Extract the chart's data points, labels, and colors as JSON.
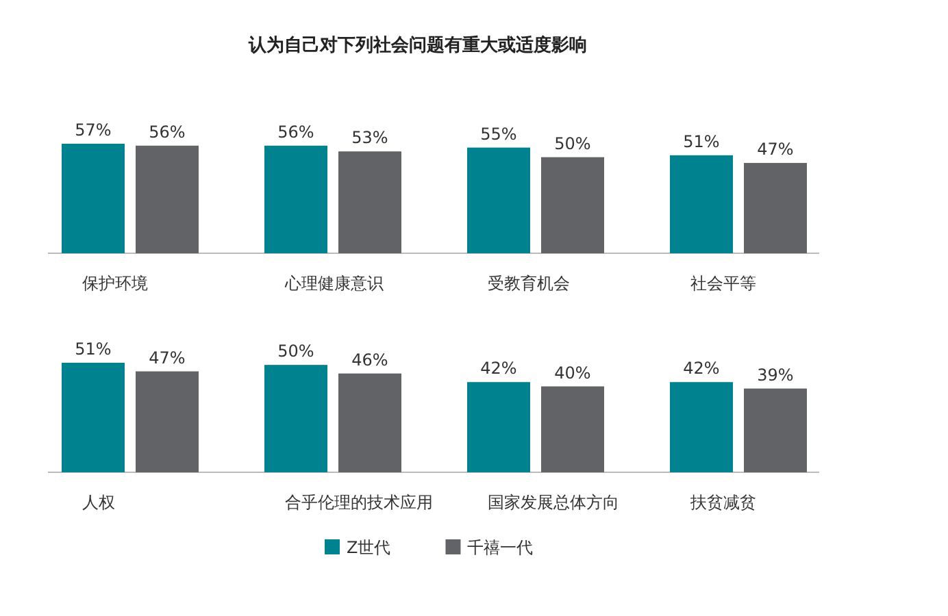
{
  "chart_data": [
    {
      "type": "bar",
      "title": "认为自己对下列社会问题有重大或适度影响",
      "categories": [
        "保护环境",
        "心理健康意识",
        "受教育机会",
        "社会平等"
      ],
      "series": [
        {
          "color": "#00838f",
          "values": [
            57,
            56,
            55,
            51
          ],
          "value_labels": [
            "57%",
            "56%",
            "55%",
            "51%"
          ]
        },
        {
          "color": "#616366",
          "values": [
            56,
            53,
            50,
            47
          ],
          "value_labels": [
            "56%",
            "53%",
            "50%",
            "47%"
          ]
        }
      ]
    },
    {
      "type": "bar",
      "categories": [
        "人权",
        "合乎伦理的技术应用",
        "国家发展总体方向",
        "扶贫减贫"
      ],
      "legend": "bottom",
      "series": [
        {
          "name": "Z世代",
          "color": "#00838f",
          "values": [
            51,
            50,
            42,
            42
          ],
          "value_labels": [
            "51%",
            "50%",
            "42%",
            "42%"
          ]
        },
        {
          "name": "千禧一代",
          "color": "#616366",
          "values": [
            47,
            46,
            40,
            39
          ],
          "value_labels": [
            "47%",
            "46%",
            "40%",
            "39%"
          ]
        }
      ]
    }
  ]
}
